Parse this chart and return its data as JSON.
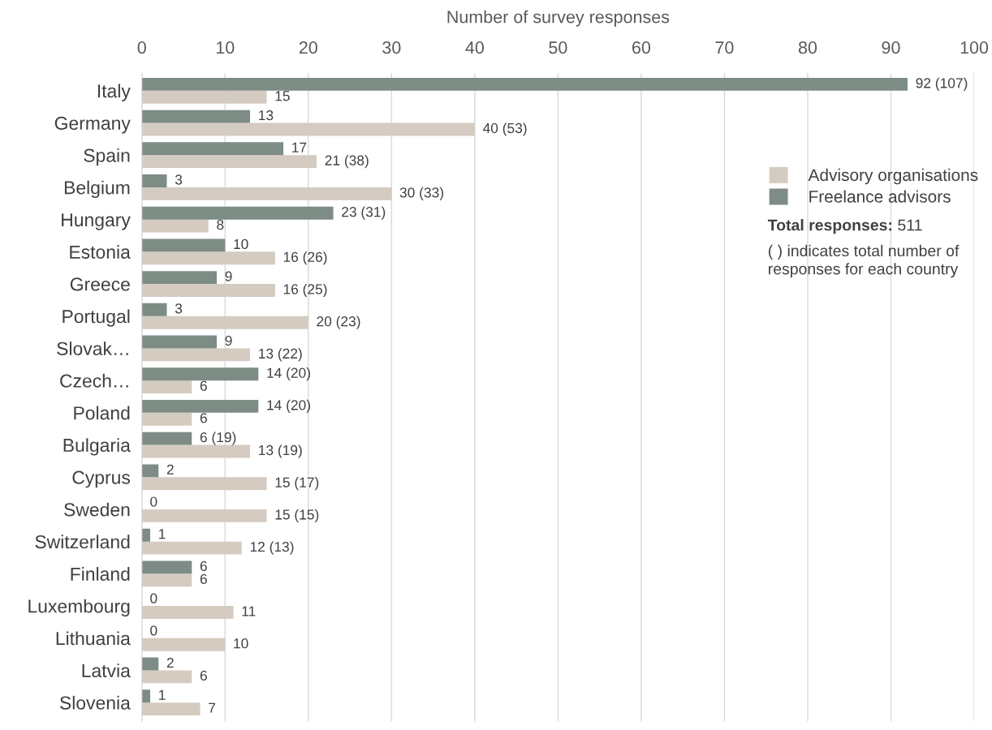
{
  "chart_data": {
    "type": "bar",
    "orientation": "horizontal",
    "xlabel": "Number of survey responses",
    "categories": [
      "Italy",
      "Germany",
      "Spain",
      "Belgium",
      "Hungary",
      "Estonia",
      "Greece",
      "Portugal",
      "Slovak…",
      "Czech…",
      "Poland",
      "Bulgaria",
      "Cyprus",
      "Sweden",
      "Switzerland",
      "Finland",
      "Luxembourg",
      "Lithuania",
      "Latvia",
      "Slovenia"
    ],
    "series": [
      {
        "name": "Advisory organisations",
        "color": "#d4cbc1",
        "values": [
          15,
          40,
          21,
          30,
          8,
          16,
          16,
          20,
          13,
          6,
          6,
          13,
          15,
          15,
          12,
          6,
          11,
          10,
          6,
          7
        ],
        "value_labels": [
          "15",
          "40 (53)",
          "21 (38)",
          "30 (33)",
          "8",
          "16 (26)",
          "16 (25)",
          "20 (23)",
          "13 (22)",
          "6",
          "6",
          "13 (19)",
          "15 (17)",
          "15 (15)",
          "12 (13)",
          "6",
          "11",
          "10",
          "6",
          "7"
        ]
      },
      {
        "name": "Freelance advisors",
        "color": "#7d8c85",
        "values": [
          92,
          13,
          17,
          3,
          23,
          10,
          9,
          3,
          9,
          14,
          14,
          6,
          2,
          0,
          1,
          6,
          0,
          0,
          2,
          1
        ],
        "value_labels": [
          "92 (107)",
          "13",
          "17",
          "3",
          "23 (31)",
          "10",
          "9",
          "3",
          "9",
          "14 (20)",
          "14 (20)",
          "6 (19)",
          "2",
          "0",
          "1",
          "6",
          "0",
          "0",
          "2",
          "1"
        ]
      }
    ],
    "xlim": [
      0,
      100
    ],
    "xticks": [
      0,
      10,
      20,
      30,
      40,
      50,
      60,
      70,
      80,
      90,
      100
    ],
    "grid": "x",
    "legend": "top right",
    "annotations": [
      "Total responses:",
      "511",
      "( ) indicates total number of responses for each country"
    ]
  }
}
